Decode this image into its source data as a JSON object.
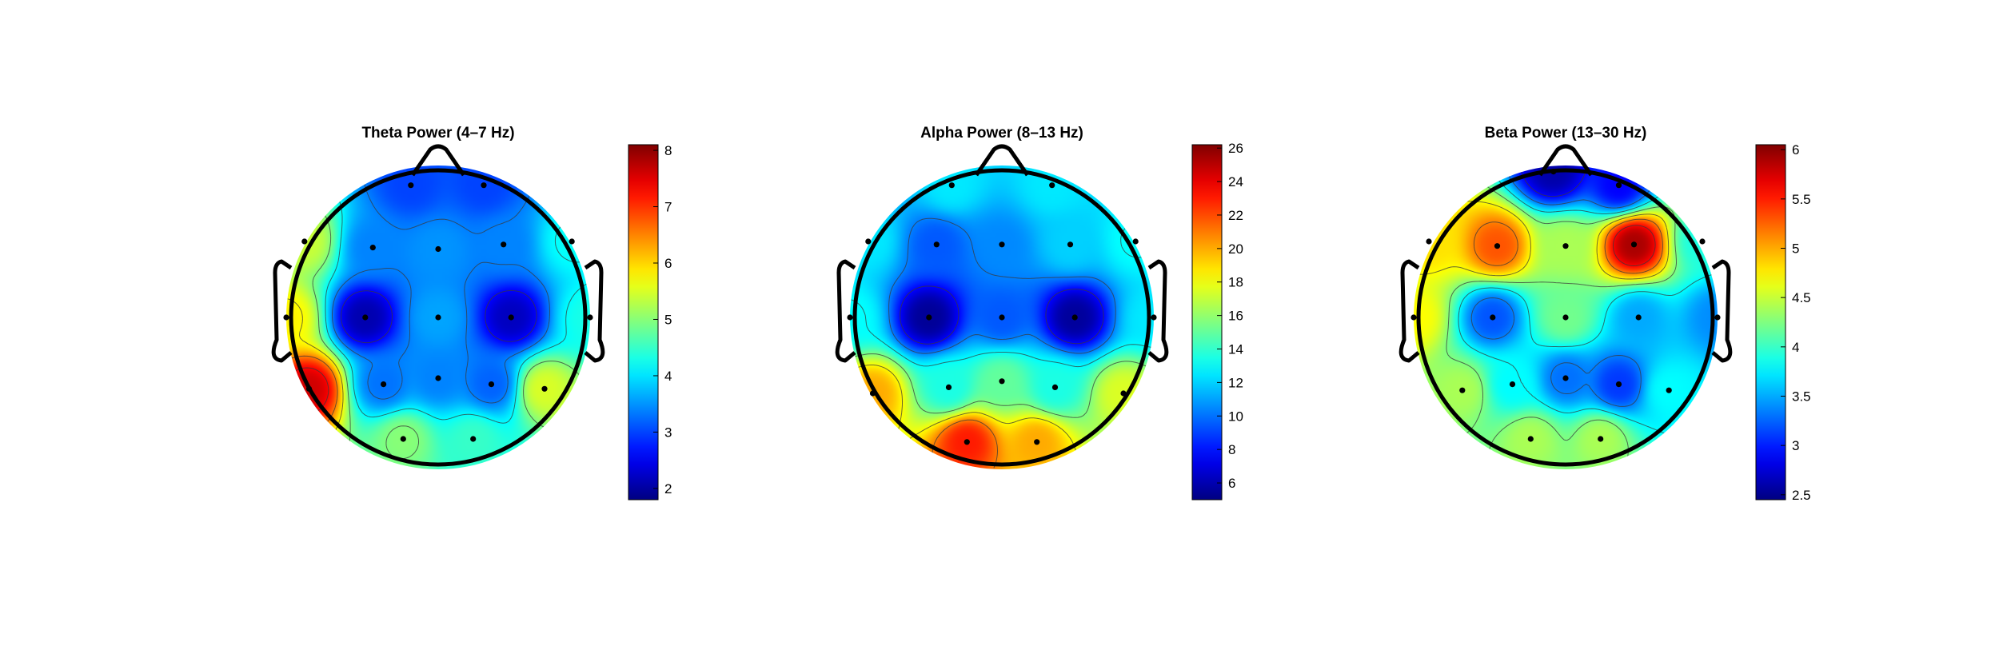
{
  "chart_data": [
    {
      "type": "heatmap",
      "subtype": "eeg-topoplot",
      "title": "Theta Power (4–7 Hz)",
      "colormap": "jet",
      "clim": [
        1.8,
        8.1
      ],
      "colorbar_ticks": [
        "2",
        "3",
        "4",
        "5",
        "6",
        "7",
        "8"
      ],
      "colorbar_values": [
        2,
        3,
        4,
        5,
        6,
        7,
        8
      ],
      "electrodes": [
        {
          "x": -0.18,
          "y": 0.87,
          "v": 3.0
        },
        {
          "x": 0.3,
          "y": 0.87,
          "v": 3.0
        },
        {
          "x": -0.88,
          "y": 0.5,
          "v": 5.4
        },
        {
          "x": -0.43,
          "y": 0.46,
          "v": 3.4
        },
        {
          "x": 0.0,
          "y": 0.45,
          "v": 3.5
        },
        {
          "x": 0.43,
          "y": 0.48,
          "v": 3.4
        },
        {
          "x": 0.88,
          "y": 0.5,
          "v": 4.2
        },
        {
          "x": -1.0,
          "y": 0.0,
          "v": 5.8
        },
        {
          "x": -0.48,
          "y": 0.0,
          "v": 2.1
        },
        {
          "x": 0.0,
          "y": 0.0,
          "v": 3.6
        },
        {
          "x": 0.48,
          "y": 0.0,
          "v": 2.2
        },
        {
          "x": 1.0,
          "y": 0.0,
          "v": 4.3
        },
        {
          "x": -0.85,
          "y": -0.47,
          "v": 7.6
        },
        {
          "x": -0.36,
          "y": -0.44,
          "v": 3.3
        },
        {
          "x": 0.0,
          "y": -0.4,
          "v": 3.4
        },
        {
          "x": 0.35,
          "y": -0.44,
          "v": 3.2
        },
        {
          "x": 0.7,
          "y": -0.47,
          "v": 5.5
        },
        {
          "x": -0.23,
          "y": -0.8,
          "v": 5.0
        },
        {
          "x": 0.23,
          "y": -0.8,
          "v": 4.5
        }
      ]
    },
    {
      "type": "heatmap",
      "subtype": "eeg-topoplot",
      "title": "Alpha Power (8–13 Hz)",
      "colormap": "jet",
      "clim": [
        5.0,
        26.2
      ],
      "colorbar_ticks": [
        "6",
        "8",
        "10",
        "12",
        "14",
        "16",
        "18",
        "20",
        "22",
        "24",
        "26"
      ],
      "colorbar_values": [
        6,
        8,
        10,
        12,
        14,
        16,
        18,
        20,
        22,
        24,
        26
      ],
      "electrodes": [
        {
          "x": -0.33,
          "y": 0.87,
          "v": 12.5
        },
        {
          "x": 0.33,
          "y": 0.87,
          "v": 12.5
        },
        {
          "x": -0.88,
          "y": 0.5,
          "v": 12.5
        },
        {
          "x": -0.43,
          "y": 0.48,
          "v": 9.5
        },
        {
          "x": 0.0,
          "y": 0.48,
          "v": 10.5
        },
        {
          "x": 0.45,
          "y": 0.48,
          "v": 12.0
        },
        {
          "x": 0.88,
          "y": 0.5,
          "v": 13.0
        },
        {
          "x": -1.0,
          "y": 0.0,
          "v": 13.0
        },
        {
          "x": -0.48,
          "y": 0.0,
          "v": 5.5
        },
        {
          "x": 0.0,
          "y": 0.0,
          "v": 9.5
        },
        {
          "x": 0.48,
          "y": 0.0,
          "v": 5.6
        },
        {
          "x": 1.0,
          "y": 0.0,
          "v": 12.5
        },
        {
          "x": -0.85,
          "y": -0.5,
          "v": 20.0
        },
        {
          "x": -0.35,
          "y": -0.46,
          "v": 13.5
        },
        {
          "x": 0.0,
          "y": -0.42,
          "v": 15.0
        },
        {
          "x": 0.35,
          "y": -0.46,
          "v": 13.5
        },
        {
          "x": 0.8,
          "y": -0.5,
          "v": 17.5
        },
        {
          "x": -0.23,
          "y": -0.82,
          "v": 23.0
        },
        {
          "x": 0.23,
          "y": -0.82,
          "v": 20.0
        }
      ]
    },
    {
      "type": "heatmap",
      "subtype": "eeg-topoplot",
      "title": "Beta Power (13–30 Hz)",
      "colormap": "jet",
      "clim": [
        2.45,
        6.05
      ],
      "colorbar_ticks": [
        "2.5",
        "3",
        "3.5",
        "4",
        "4.5",
        "5",
        "5.5",
        "6"
      ],
      "colorbar_values": [
        2.5,
        3,
        3.5,
        4,
        4.5,
        5,
        5.5,
        6
      ],
      "electrodes": [
        {
          "x": -0.08,
          "y": 0.96,
          "v": 2.6
        },
        {
          "x": 0.35,
          "y": 0.87,
          "v": 2.9
        },
        {
          "x": -0.9,
          "y": 0.5,
          "v": 4.8
        },
        {
          "x": -0.45,
          "y": 0.47,
          "v": 5.3
        },
        {
          "x": 0.0,
          "y": 0.47,
          "v": 4.4
        },
        {
          "x": 0.45,
          "y": 0.48,
          "v": 5.9
        },
        {
          "x": 0.9,
          "y": 0.5,
          "v": 3.9
        },
        {
          "x": -1.0,
          "y": 0.0,
          "v": 4.7
        },
        {
          "x": -0.48,
          "y": 0.0,
          "v": 3.2
        },
        {
          "x": 0.0,
          "y": 0.0,
          "v": 4.2
        },
        {
          "x": 0.48,
          "y": 0.0,
          "v": 3.5
        },
        {
          "x": 1.0,
          "y": 0.0,
          "v": 3.4
        },
        {
          "x": -0.68,
          "y": -0.48,
          "v": 4.4
        },
        {
          "x": -0.35,
          "y": -0.44,
          "v": 3.8
        },
        {
          "x": 0.0,
          "y": -0.4,
          "v": 3.3
        },
        {
          "x": 0.35,
          "y": -0.44,
          "v": 3.1
        },
        {
          "x": 0.68,
          "y": -0.48,
          "v": 3.8
        },
        {
          "x": -0.23,
          "y": -0.8,
          "v": 4.4
        },
        {
          "x": 0.23,
          "y": -0.8,
          "v": 4.4
        }
      ]
    }
  ]
}
